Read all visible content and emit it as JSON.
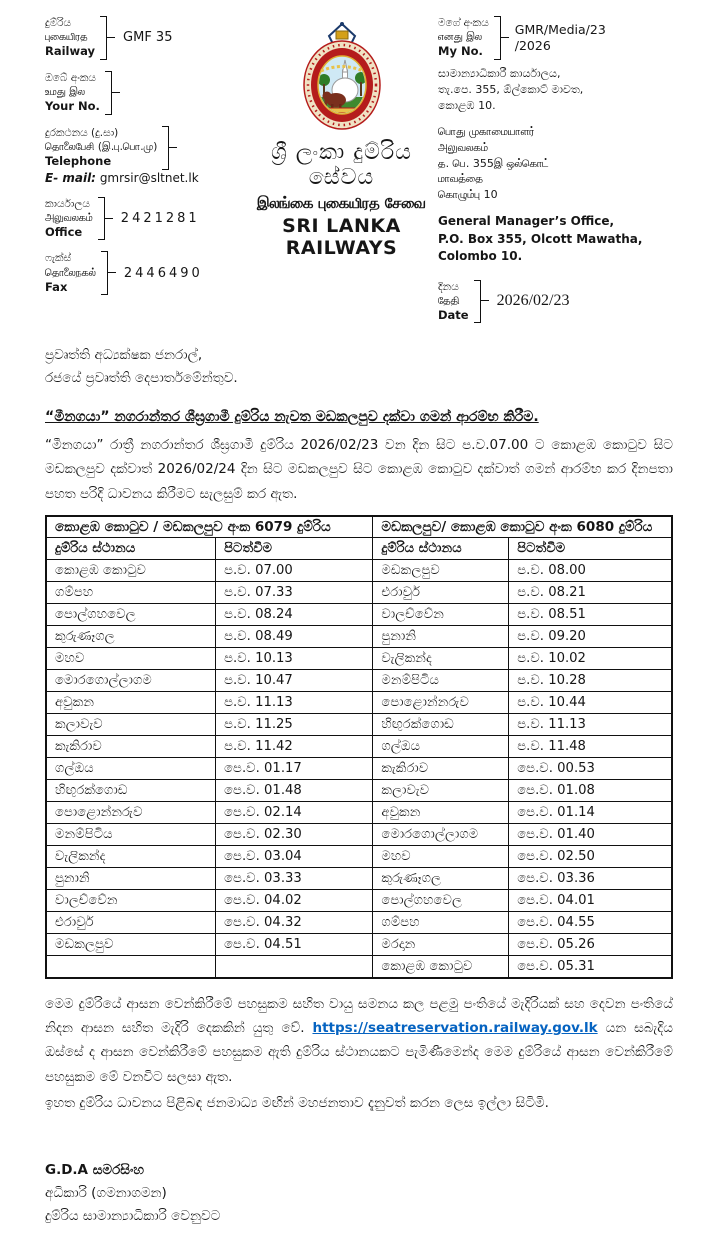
{
  "letterhead": {
    "left": {
      "railway": {
        "lines": [
          "දුම්රිය",
          "புகையிரத",
          "Railway"
        ],
        "value": "GMF 35"
      },
      "your_no": {
        "lines": [
          "ඔබේ අංකය",
          "உமது இல",
          "Your No."
        ],
        "value": ""
      },
      "telephone": {
        "lines": [
          "දුරකථනය (දු.සා)",
          "தொலைபேசி (இ.பு.பொ.மு)",
          "Telephone"
        ],
        "value": ""
      },
      "email_label": "E- mail:",
      "email_value": "gmrsir@sltnet.lk",
      "office": {
        "lines": [
          "කාර්යාලය",
          "அலுவலகம்",
          "Office"
        ],
        "value": "2421281"
      },
      "fax": {
        "lines": [
          "ෆැක්ස්",
          "தொலைநகல்",
          "Fax"
        ],
        "value": "2446490"
      }
    },
    "center": {
      "logo": "sri-lanka-railways-crest",
      "title_sinhala": "ශ්‍රී ලංකා දුම්රිය සේවය",
      "title_tamil": "இலங்கை புகையிரத சேவை",
      "title_english": "SRI LANKA RAILWAYS"
    },
    "right": {
      "my_no": {
        "lines": [
          "මගේ අංකය",
          "எனது இல",
          "My No."
        ],
        "value": "GMR/Media/23/2026"
      },
      "address_sinhala": [
        "සාමාන්‍යාධිකාරී කාර්යාලය,",
        "තැ.පෙ. 355, ඕල්කොට් මාවත,",
        "කොළඹ 10."
      ],
      "address_tamil": [
        "பொது முகாமையாளர்",
        "அலுவலகம்",
        "த. பெ. 355இ ஒல்கொட்",
        "மாவத்தை",
        "கொழும்பு  10"
      ],
      "address_english": [
        "General Manager’s Office,",
        "P.O. Box 355, Olcott Mawatha,",
        "Colombo 10."
      ],
      "date": {
        "lines": [
          "දිනය",
          "தேதி",
          "Date"
        ],
        "value": "2026/02/23"
      }
    }
  },
  "body": {
    "addressee": [
      "ප්‍රවෘත්ති අධ්‍යක්ෂක ජනරාල්,",
      "රජයේ ප්‍රවෘත්ති දෙපාර්තමේන්තුව."
    ],
    "subject": "“මීනගයා” නගරාන්තර ශීඝ්‍රගාමී දුම්රිය නැවත මඩකලපුව දක්වා ගමන් ආරම්භ කිරීම.",
    "intro": "“මීනගයා” රාත්‍රී නගරාන්තර ශීඝ්‍රගාමී දුම්රිය 2026/02/23 වන දින සිට ප.ව.07.00 ට කොළඹ කොටුව සිට මඩකලපුව දක්වාත් 2026/02/24 දින සිට මඩකලපුව සිට කොළඹ කොටුව දක්වාත් ගමන් ආරම්භ කර දිනපතා පහත පරිදි ධාවනය කිරීමට සැලසුම් කර ඇත."
  },
  "table": {
    "train_6079": {
      "header": "කොළඹ කොටුව / මඩකලපුව අංක 6079 දුම්රිය",
      "columns": [
        "දුම්රිය ස්ථානය",
        "පිටත්වීම"
      ],
      "rows": [
        [
          "කොළඹ කොටුව",
          "ප.ව. 07.00"
        ],
        [
          "ගම්පහ",
          "ප.ව. 07.33"
        ],
        [
          "පොල්ගහවෙල",
          "ප.ව. 08.24"
        ],
        [
          "කුරුණෑගල",
          "ප.ව. 08.49"
        ],
        [
          "මහව",
          "ප.ව. 10.13"
        ],
        [
          "මොරගොල්ලාගම",
          "ප.ව. 10.47"
        ],
        [
          "අවුකන",
          "ප.ව. 11.13"
        ],
        [
          "කලාවැව",
          "ප.ව. 11.25"
        ],
        [
          "කැකිරාව",
          "ප.ව. 11.42"
        ],
        [
          "ගල්ඔය",
          "පෙ.ව. 01.17"
        ],
        [
          "හිඟුරක්ගොඩ",
          "පෙ.ව. 01.48"
        ],
        [
          "පොළොන්නරුව",
          "පෙ.ව. 02.14"
        ],
        [
          "මනම්පිටිය",
          "පෙ.ව. 02.30"
        ],
        [
          "වැලිකන්ද",
          "පෙ.ව. 03.04"
        ],
        [
          "පුනානි",
          "පෙ.ව. 03.33"
        ],
        [
          "වාලච්වේන",
          "පෙ.ව. 04.02"
        ],
        [
          "එරාවුර්",
          "පෙ.ව. 04.32"
        ],
        [
          "මඩකලපුව",
          "පෙ.ව. 04.51"
        ],
        [
          "",
          ""
        ]
      ]
    },
    "train_6080": {
      "header": "මඩකලපුව/ කොළඹ කොටුව අංක 6080 දුම්රිය",
      "columns": [
        "දුම්රිය ස්ථානය",
        "පිටත්වීම"
      ],
      "rows": [
        [
          "මඩකලපුව",
          "ප.ව. 08.00"
        ],
        [
          "එරාවුර්",
          "ප.ව. 08.21"
        ],
        [
          "වාලච්වේන",
          "ප.ව. 08.51"
        ],
        [
          "පුනානි",
          "ප.ව. 09.20"
        ],
        [
          "වැලිකන්ද",
          "ප.ව. 10.02"
        ],
        [
          "මනම්පිටිය",
          "ප.ව. 10.28"
        ],
        [
          "පොළොන්නරුව",
          "ප.ව. 10.44"
        ],
        [
          "හිඟුරක්ගොඩ",
          "ප.ව. 11.13"
        ],
        [
          "ගල්ඔය",
          "ප.ව. 11.48"
        ],
        [
          "කැකිරාව",
          "පෙ.ව. 00.53"
        ],
        [
          "කලාවැව",
          "පෙ.ව. 01.08"
        ],
        [
          "අවුකන",
          "පෙ.ව. 01.14"
        ],
        [
          "මොරගොල්ලාගම",
          "පෙ.ව. 01.40"
        ],
        [
          "මහව",
          "පෙ.ව. 02.50"
        ],
        [
          "කුරුණෑගල",
          "පෙ.ව. 03.36"
        ],
        [
          "පොල්ගහවෙල",
          "පෙ.ව. 04.01"
        ],
        [
          "ගම්පහ",
          "පෙ.ව. 04.55"
        ],
        [
          "මරදාන",
          "පෙ.ව. 05.26"
        ],
        [
          "කොළඹ කොටුව",
          "පෙ.ව. 05.31"
        ]
      ]
    }
  },
  "closing": {
    "para_before_link": "මෙම දුම්රියේ ආසන වෙන්කිරීමේ පහසුකම සහිත වායු සමනය කල පළමු පංතියේ මැදිරියක් සහ දෙවන පංතියේ නිදන ආසන සහිත මැදිරි  දෙකකින් යුතු වේ. ",
    "link_text": "https://seatreservation.railway.gov.lk",
    "para_after_link": " යන සබැදිය ඔස්සේ ද ආසන වෙන්කිරීමේ පහසුකම ඇති දුම්රිය ස්ථානයකට පැමිණීමෙන්ද  මෙම දුම්රියේ ආසන වෙන්කිරීමේ පහසුකම මේ වනවිට සලසා ඇත.",
    "request": "ඉහත දුම්රිය ධාවනය පිළිබඳ ජනමාධ්‍ය මඟින් මහජනතාව දැනුවත් කරන ලෙස ඉල්ලා සිටිමි."
  },
  "signature": {
    "name": "G.D.A සමරසිංහ",
    "title1": "අධිකාරි (ගමනාගමන)",
    "title2": "දුම්රිය සාමාන්‍යාධිකාරි වෙනුවට"
  },
  "colors": {
    "link": "#0563c1",
    "text": "#161616",
    "crest_red": "#b51c1c",
    "crest_cream": "#f0e2c4"
  }
}
